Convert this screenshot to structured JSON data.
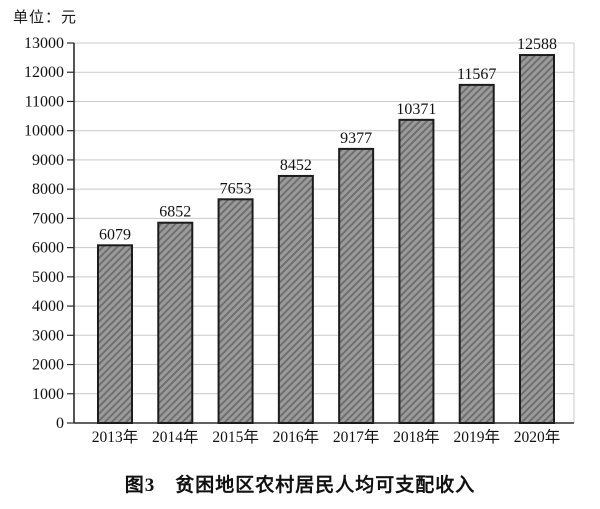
{
  "unit_label": "单位：元",
  "caption": "图3　贫困地区农村居民人均可支配收入",
  "colors": {
    "background": "#ffffff",
    "grid": "#c9c9c9",
    "frame": "#c9c9c9",
    "axis": "#2b2b2b",
    "tick": "#2b2b2b",
    "bar_fill": "#9b9b9b",
    "bar_hatch": "#6f6f6f",
    "bar_border": "#1c1c1c",
    "text": "#111111"
  },
  "chart_data": {
    "type": "bar",
    "categories": [
      "2013年",
      "2014年",
      "2015年",
      "2016年",
      "2017年",
      "2018年",
      "2019年",
      "2020年"
    ],
    "values": [
      6079,
      6852,
      7653,
      8452,
      9377,
      10371,
      11567,
      12588
    ],
    "title": "图3　贫困地区农村居民人均可支配收入",
    "xlabel": "",
    "ylabel": "单位：元",
    "ylim": [
      0,
      13000
    ],
    "yticks": [
      0,
      1000,
      2000,
      3000,
      4000,
      5000,
      6000,
      7000,
      8000,
      9000,
      10000,
      11000,
      12000,
      13000
    ],
    "grid": true,
    "legend": "none",
    "bar_pattern": "diagonal-hatch",
    "value_labels": "above-bars"
  }
}
